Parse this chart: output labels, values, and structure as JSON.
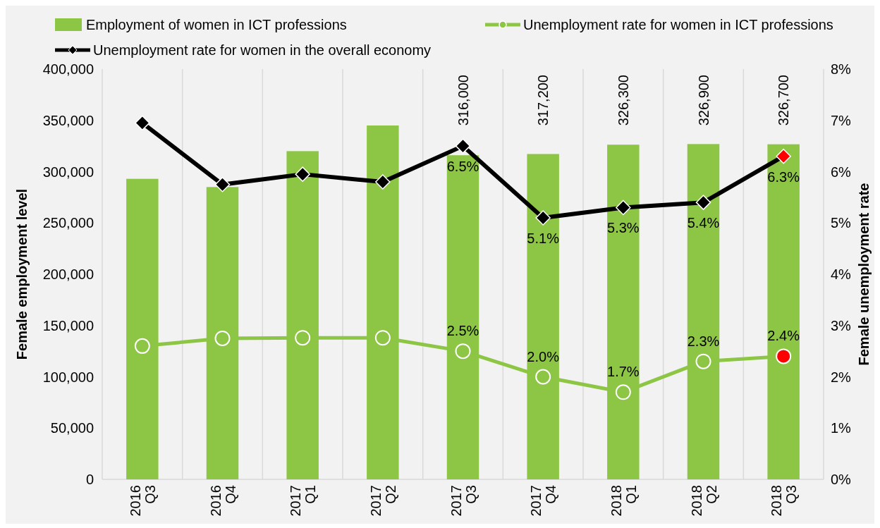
{
  "chart_data": {
    "type": "bar",
    "categories": [
      "2016 Q3",
      "2016 Q4",
      "2017 Q1",
      "2017 Q2",
      "2017 Q3",
      "2017 Q4",
      "2018 Q1",
      "2018 Q2",
      "2018 Q3"
    ],
    "ylabel": "Female employment  level",
    "y2label": "Female unemployment rate",
    "series": [
      {
        "name": "Employment of women in ICT professions",
        "color": "#8dc544",
        "values": [
          293000,
          285000,
          320000,
          345000,
          316000,
          317200,
          326300,
          326900,
          326700
        ],
        "value_labels": [
          null,
          null,
          null,
          null,
          "316,000",
          "317,200",
          "326,300",
          "326,900",
          "326,700"
        ]
      },
      {
        "name": "Unemployment rate for women in ICT professions",
        "type": "line",
        "axis": "y2",
        "marker": "circle",
        "color": "#8dc544",
        "colors": [
          "#8dc544",
          "#8dc544",
          "#8dc544",
          "#8dc544",
          "#8dc544",
          "#8dc544",
          "#8dc544",
          "#8dc544",
          "#ff0000"
        ],
        "values": [
          2.6,
          2.75,
          2.76,
          2.76,
          2.5,
          2.0,
          1.7,
          2.3,
          2.4
        ],
        "value_labels": [
          null,
          null,
          null,
          null,
          "2.5%",
          "2.0%",
          "1.7%",
          "2.3%",
          "2.4%"
        ]
      },
      {
        "name": "Unemployment rate for women in the overall economy",
        "type": "line",
        "axis": "y2",
        "marker": "diamond",
        "color": "#000000",
        "colors": [
          "#000000",
          "#000000",
          "#000000",
          "#000000",
          "#000000",
          "#000000",
          "#000000",
          "#000000",
          "#ff0000"
        ],
        "values": [
          6.95,
          5.75,
          5.95,
          5.8,
          6.5,
          5.1,
          5.3,
          5.4,
          6.3
        ],
        "value_labels": [
          null,
          null,
          null,
          null,
          "6.5%",
          "5.1%",
          "5.3%",
          "5.4%",
          "6.3%"
        ]
      }
    ],
    "ylim": [
      0,
      400000
    ],
    "yticks": [
      {
        "value": 0,
        "label": "0"
      },
      {
        "value": 50000,
        "label": "50,000"
      },
      {
        "value": 100000,
        "label": "100,000"
      },
      {
        "value": 150000,
        "label": "150,000"
      },
      {
        "value": 200000,
        "label": "200,000"
      },
      {
        "value": 250000,
        "label": "250,000"
      },
      {
        "value": 300000,
        "label": "300,000"
      },
      {
        "value": 350000,
        "label": "350,000"
      },
      {
        "value": 400000,
        "label": "400,000"
      }
    ],
    "y2lim": [
      0,
      8
    ],
    "y2ticks": [
      {
        "value": 0,
        "label": "0%"
      },
      {
        "value": 1,
        "label": "1%"
      },
      {
        "value": 2,
        "label": "2%"
      },
      {
        "value": 3,
        "label": "3%"
      },
      {
        "value": 4,
        "label": "4%"
      },
      {
        "value": 5,
        "label": "5%"
      },
      {
        "value": 6,
        "label": "6%"
      },
      {
        "value": 7,
        "label": "7%"
      },
      {
        "value": 8,
        "label": "8%"
      }
    ],
    "grid": "x",
    "legend": "top"
  }
}
